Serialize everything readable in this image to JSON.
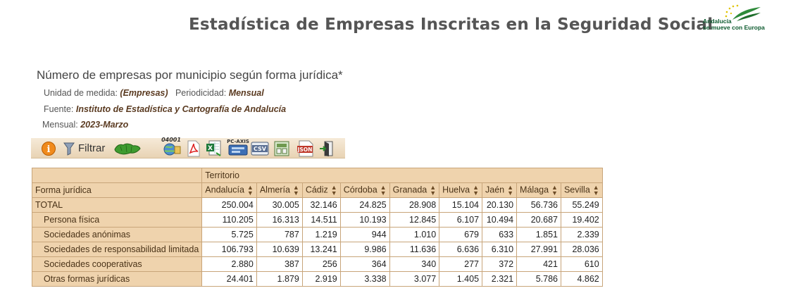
{
  "header": {
    "title": "Estadística de Empresas Inscritas en la Seguridad Social",
    "logo_text_line1": "Andalucía",
    "logo_text_line2": "se mueve con Europa"
  },
  "query": {
    "title": "Número de empresas por municipio según forma jurídica*",
    "unit_label": "Unidad de medida:",
    "unit_value": "(Empresas)",
    "periodicity_label": "Periodicidad:",
    "periodicity_value": "Mensual",
    "source_label": "Fuente:",
    "source_value": "Instituto de Estadística y Cartografía de Andalucía",
    "period_label": "Mensual:",
    "period_value": "2023-Marzo"
  },
  "toolbar": {
    "filter_label": "Filtrar",
    "icons": [
      "info-icon",
      "filter-icon",
      "map-andalucia-icon",
      "globe-04001-icon",
      "pdf-icon",
      "excel-icon",
      "pc-axis-icon",
      "csv-icon",
      "export-icon",
      "json-icon",
      "exit-icon"
    ],
    "label_04001": "04001",
    "label_pcaxis": "PC-AXIS",
    "label_csv": "CSV",
    "label_json": "JSON"
  },
  "table": {
    "territory_header": "Territorio",
    "row_header": "Forma jurídica",
    "columns": [
      "Andalucía",
      "Almería",
      "Cádiz",
      "Córdoba",
      "Granada",
      "Huelva",
      "Jaén",
      "Málaga",
      "Sevilla"
    ],
    "rows": [
      {
        "label": "TOTAL",
        "indent": false,
        "values": [
          "250.004",
          "30.005",
          "32.146",
          "24.825",
          "28.908",
          "15.104",
          "20.130",
          "56.736",
          "55.249"
        ]
      },
      {
        "label": "Persona física",
        "indent": true,
        "values": [
          "110.205",
          "16.313",
          "14.511",
          "10.193",
          "12.845",
          "6.107",
          "10.494",
          "20.687",
          "19.402"
        ]
      },
      {
        "label": "Sociedades anónimas",
        "indent": true,
        "values": [
          "5.725",
          "787",
          "1.219",
          "944",
          "1.010",
          "679",
          "633",
          "1.851",
          "2.339"
        ]
      },
      {
        "label": "Sociedades de responsabilidad limitada",
        "indent": true,
        "values": [
          "106.793",
          "10.639",
          "13.241",
          "9.986",
          "11.636",
          "6.636",
          "6.310",
          "27.991",
          "28.036"
        ]
      },
      {
        "label": "Sociedades cooperativas",
        "indent": true,
        "values": [
          "2.880",
          "387",
          "256",
          "364",
          "340",
          "277",
          "372",
          "421",
          "610"
        ]
      },
      {
        "label": "Otras formas jurídicas",
        "indent": true,
        "values": [
          "24.401",
          "1.879",
          "2.919",
          "3.338",
          "3.077",
          "1.405",
          "2.321",
          "5.786",
          "4.862"
        ]
      }
    ]
  },
  "colors": {
    "header_bg": "#efd3ad",
    "border": "#c8a57a",
    "title_gray": "#555555",
    "value_brown": "#5a3a20"
  }
}
